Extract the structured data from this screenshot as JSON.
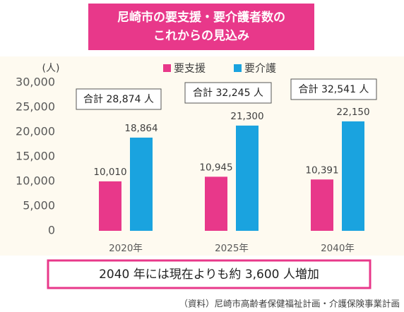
{
  "chart_data": {
    "type": "bar",
    "title": [
      "尼崎市の要支援・要介護者数の",
      "これからの見込み"
    ],
    "y_unit": "(人)",
    "categories": [
      "2020年",
      "2025年",
      "2040年"
    ],
    "series": [
      {
        "name": "要支援",
        "color": "#e8388a",
        "values": [
          10010,
          10945,
          10391
        ],
        "value_labels": [
          "10,010",
          "10,945",
          "10,391"
        ]
      },
      {
        "name": "要介護",
        "color": "#1aa3df",
        "values": [
          18864,
          21300,
          22150
        ],
        "value_labels": [
          "18,864",
          "21,300",
          "22,150"
        ]
      }
    ],
    "ylim": [
      0,
      30000
    ],
    "yticks": [
      0,
      {
        "value": 5000,
        "label": "5,000"
      },
      {
        "value": 10000,
        "label": "10,000"
      },
      {
        "value": 15000,
        "label": "15,000"
      },
      {
        "value": 20000,
        "label": "20,000"
      },
      {
        "value": 25000,
        "label": "25,000"
      },
      {
        "value": 30000,
        "label": "30,000"
      }
    ],
    "annotations": [
      "合計 28,874 人",
      "合計 32,245 人",
      "合計 32,541 人"
    ],
    "summary": "2040 年には現在よりも約 3,600 人増加",
    "source": "（資料）尼崎市高齢者保健福祉計画・介護保険事業計画"
  }
}
